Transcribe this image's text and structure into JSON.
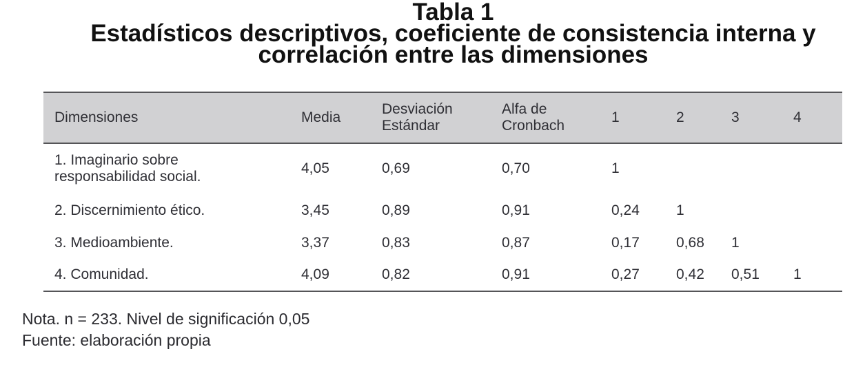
{
  "title": {
    "line1": "Tabla 1",
    "line2": "Estadísticos descriptivos, coeficiente de consistencia interna y",
    "line3": "correlación entre las dimensiones"
  },
  "table": {
    "headers": {
      "dimensiones": "Dimensiones",
      "media": "Media",
      "sd_line1": "Desviación",
      "sd_line2": "Estándar",
      "alpha_line1": "Alfa de",
      "alpha_line2": "Cronbach",
      "c1": "1",
      "c2": "2",
      "c3": "3",
      "c4": "4"
    },
    "rows": [
      {
        "dim_line1": "1. Imaginario sobre",
        "dim_line2": "responsabilidad social.",
        "media": "4,05",
        "sd": "0,69",
        "alpha": "0,70",
        "c1": "1",
        "c2": "",
        "c3": "",
        "c4": ""
      },
      {
        "dim_line1": "2. Discernimiento ético.",
        "dim_line2": "",
        "media": "3,45",
        "sd": "0,89",
        "alpha": "0,91",
        "c1": "0,24",
        "c2": "1",
        "c3": "",
        "c4": ""
      },
      {
        "dim_line1": "3. Medioambiente.",
        "dim_line2": "",
        "media": "3,37",
        "sd": "0,83",
        "alpha": "0,87",
        "c1": "0,17",
        "c2": "0,68",
        "c3": "1",
        "c4": ""
      },
      {
        "dim_line1": "4. Comunidad.",
        "dim_line2": "",
        "media": "4,09",
        "sd": "0,82",
        "alpha": "0,91",
        "c1": "0,27",
        "c2": "0,42",
        "c3": "0,51",
        "c4": "1"
      }
    ]
  },
  "notes": {
    "nota": "Nota. n = 233. Nivel de significación 0,05",
    "fuente": "Fuente: elaboración propia"
  },
  "colors": {
    "header_bg": "#d1d1d3",
    "rule": "#555558",
    "text": "#2f2f35"
  }
}
